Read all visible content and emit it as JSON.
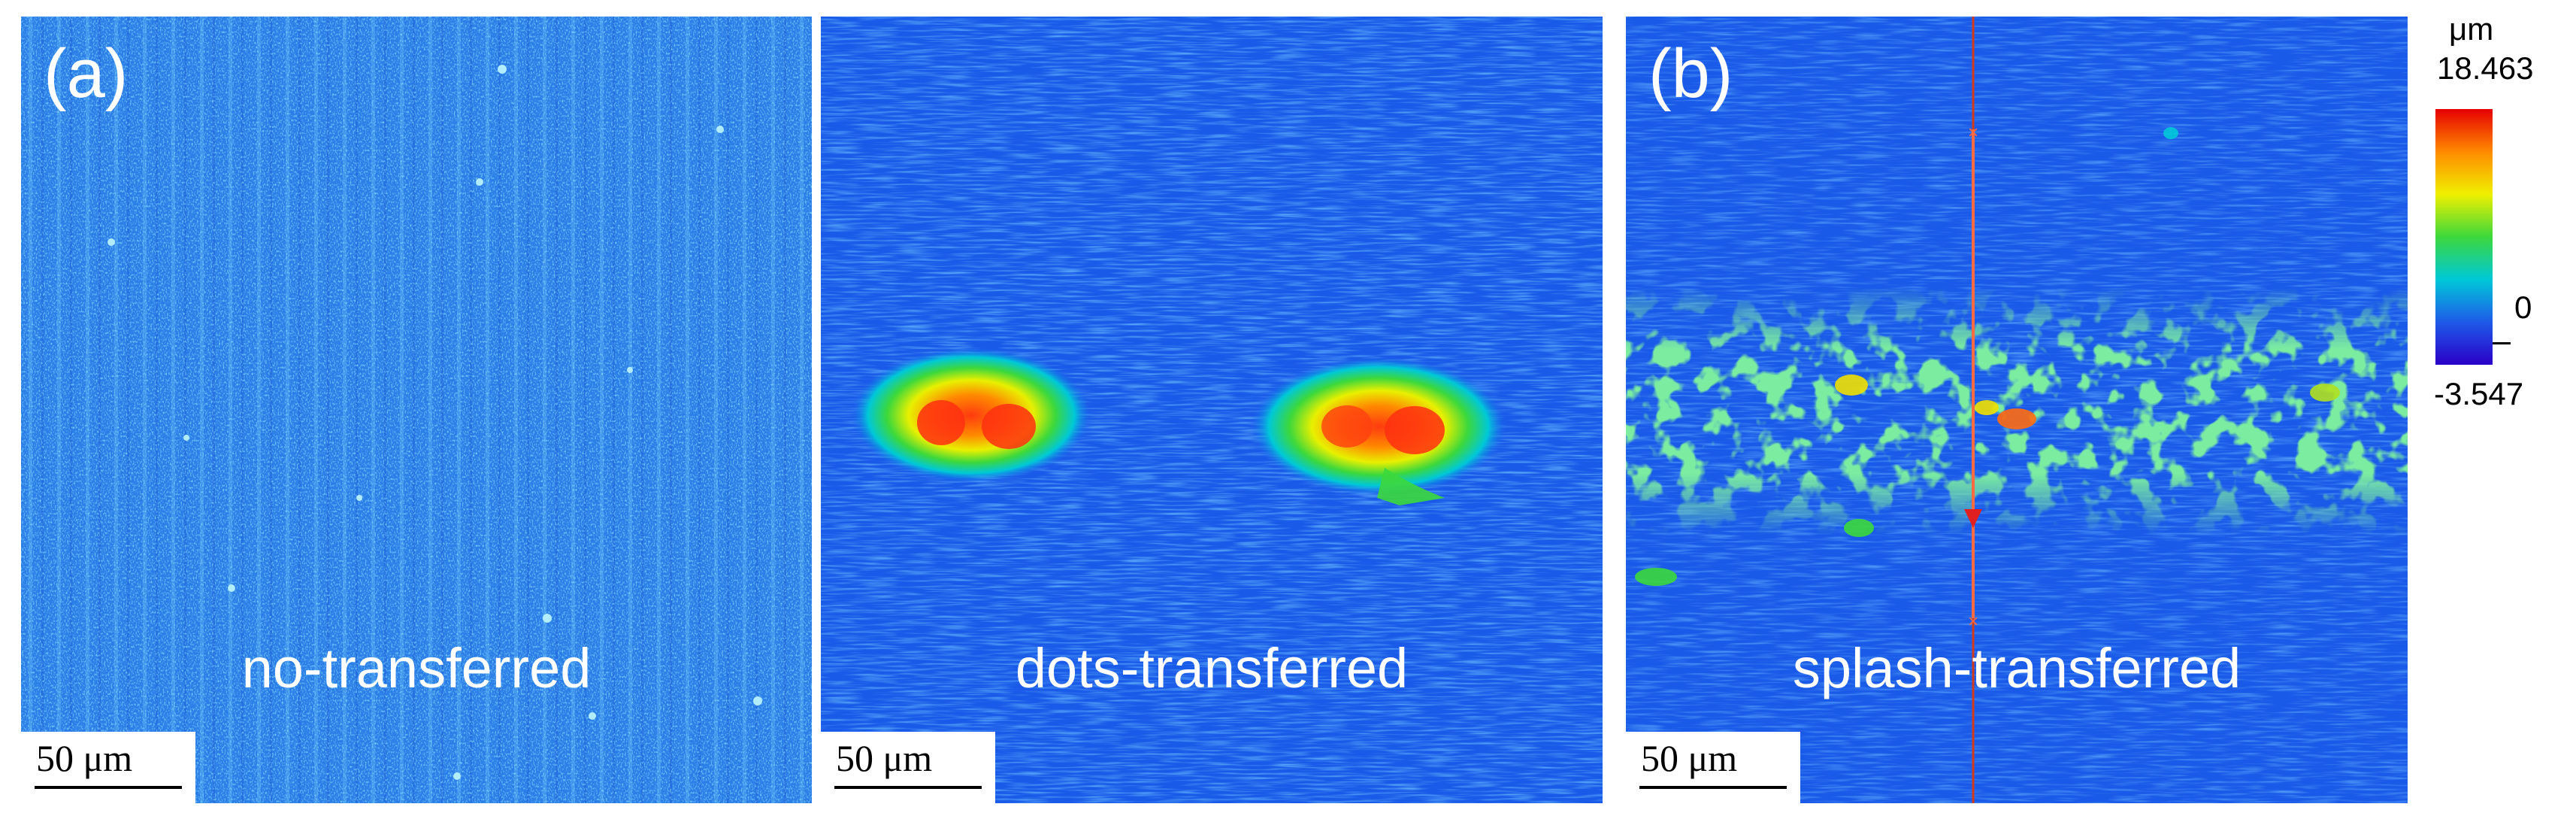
{
  "panels": [
    {
      "tag": "(a)",
      "caption": "no-transferred",
      "scale_label": "50 μm"
    },
    {
      "tag": "",
      "caption": "dots-transferred",
      "scale_label": "50 μm"
    },
    {
      "tag": "(b)",
      "caption": "splash-transferred",
      "scale_label": "50 μm"
    }
  ],
  "colorbar": {
    "unit": "μm",
    "max_label": "18.463",
    "zero_label": "0",
    "min_label": "-3.547",
    "colors": [
      "#e60000",
      "#ff8a00",
      "#f0f000",
      "#3cd83c",
      "#00c8d8",
      "#1e5ae8",
      "#2a00c8"
    ]
  },
  "colors": {
    "background_blue": "#1a62f0",
    "background_blue_light": "#2f8ae8",
    "hot_red": "#ff3a10",
    "profile_line": "#d23a1e"
  }
}
